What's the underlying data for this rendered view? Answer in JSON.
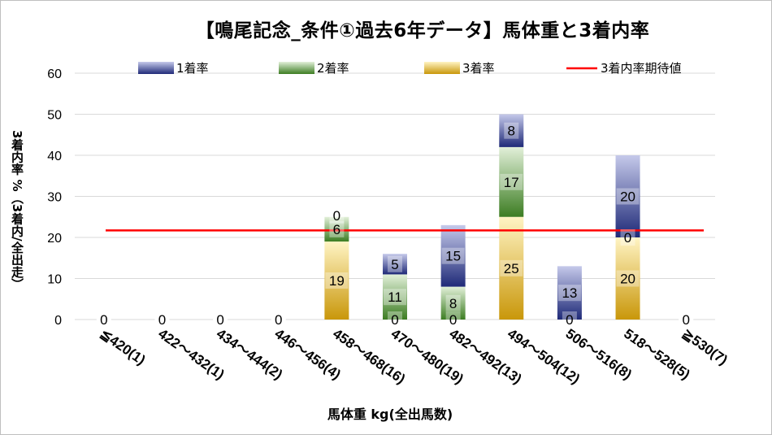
{
  "chart_data": {
    "type": "bar",
    "title": "【鳴尾記念_条件①過去6年データ】馬体重と3着内率",
    "xlabel": "馬体重 kg(全出馬数)",
    "ylabel": "3着内率 %（3着内/全出走）",
    "ylim": [
      0,
      60
    ],
    "yticks": [
      "0",
      "10",
      "20",
      "30",
      "40",
      "50",
      "60"
    ],
    "grid": true,
    "legend_position": "top",
    "categories": [
      "≦420(1)",
      "422～432(1)",
      "434～444(2)",
      "446～456(4)",
      "458～468(16)",
      "470～480(19)",
      "482～492(13)",
      "494～504(12)",
      "506～516(8)",
      "518～528(5)",
      "≧530(7)"
    ],
    "series": [
      {
        "name": "3着率",
        "values": [
          0,
          0,
          0,
          0,
          19,
          0,
          0,
          25,
          0,
          20,
          0
        ],
        "color": "#f5c24a"
      },
      {
        "name": "2着率",
        "values": [
          0,
          0,
          0,
          0,
          6,
          11,
          8,
          17,
          0,
          0,
          0
        ],
        "color": "#70ad47"
      },
      {
        "name": "1着率",
        "values": [
          0,
          0,
          0,
          0,
          0,
          5,
          15,
          8,
          13,
          20,
          0
        ],
        "color": "#3f4a9b"
      }
    ],
    "reference_line": {
      "name": "3着内率期待値",
      "value": 21.7,
      "color": "#ff0000"
    },
    "legend_order": [
      "1着率",
      "2着率",
      "3着率",
      "3着内率期待値"
    ]
  }
}
